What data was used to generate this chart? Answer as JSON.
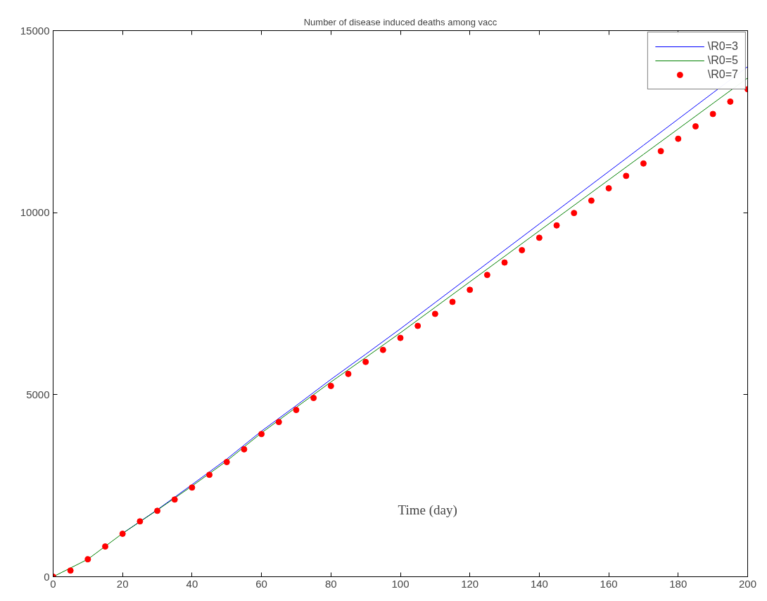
{
  "chart_data": {
    "type": "line",
    "title": "Number of disease induced deaths among vacc",
    "xlabel": "Time (day)",
    "xlim": [
      0,
      200
    ],
    "ylim": [
      0,
      15000
    ],
    "xticks": [
      0,
      20,
      40,
      60,
      80,
      100,
      120,
      140,
      160,
      180,
      200
    ],
    "yticks": [
      0,
      5000,
      10000,
      15000
    ],
    "grid": false,
    "legend": "top right",
    "series": [
      {
        "name": "\\R0=3",
        "color": "#0000ff",
        "x": [
          20,
          30,
          40,
          50,
          60,
          70,
          80,
          90,
          100,
          110,
          120,
          130,
          140,
          150,
          160,
          170,
          180,
          190,
          200
        ],
        "values": [
          1190,
          1840,
          2530,
          3230,
          4000,
          4700,
          5420,
          6110,
          6810,
          7530,
          8250,
          8970,
          9690,
          10410,
          11130,
          11850,
          12570,
          13290,
          14010
        ]
      },
      {
        "name": "\\R0=5",
        "color": "#008000",
        "x": [
          0,
          10,
          20,
          30,
          40,
          50,
          60,
          70,
          80,
          90,
          100,
          110,
          120,
          130,
          140,
          150,
          160,
          170,
          180,
          190,
          200
        ],
        "values": [
          0,
          480,
          1190,
          1830,
          2490,
          3180,
          3950,
          4650,
          5350,
          6020,
          6700,
          7400,
          8100,
          8800,
          9500,
          10200,
          10900,
          11600,
          12300,
          13000,
          13700
        ]
      },
      {
        "name": "\\R0=7",
        "color": "#ff0000",
        "type": "scatter",
        "marker": "circle",
        "x": [
          0,
          5,
          10,
          15,
          20,
          25,
          30,
          35,
          40,
          45,
          50,
          55,
          60,
          65,
          70,
          75,
          80,
          85,
          90,
          95,
          100,
          105,
          110,
          115,
          120,
          125,
          130,
          135,
          140,
          145,
          150,
          155,
          160,
          165,
          170,
          175,
          180,
          185,
          190,
          195,
          200
        ],
        "values": [
          0,
          170,
          480,
          830,
          1180,
          1520,
          1810,
          2120,
          2450,
          2800,
          3150,
          3500,
          3920,
          4250,
          4580,
          4910,
          5240,
          5570,
          5900,
          6230,
          6560,
          6890,
          7220,
          7550,
          7880,
          8290,
          8630,
          8970,
          9310,
          9650,
          9990,
          10330,
          10670,
          11010,
          11350,
          11690,
          12030,
          12370,
          12710,
          13050,
          13390
        ]
      }
    ]
  }
}
